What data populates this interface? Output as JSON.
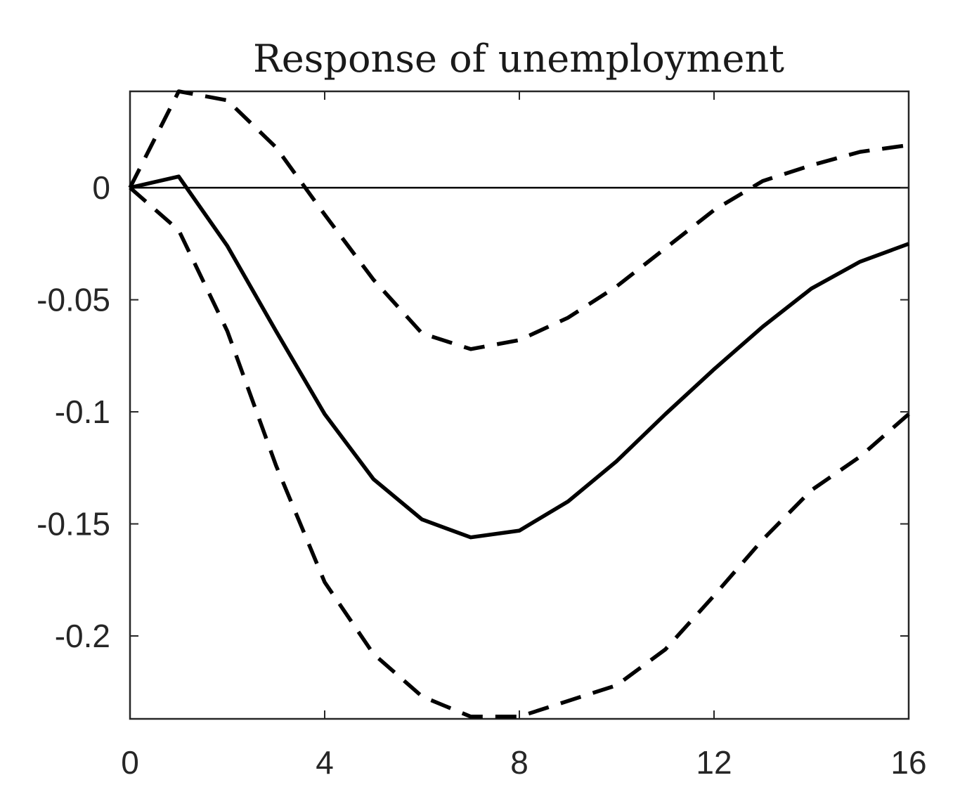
{
  "chart_data": {
    "type": "line",
    "title": "Response of unemployment",
    "xlabel": "",
    "ylabel": "",
    "xlim": [
      0,
      16
    ],
    "ylim": [
      -0.237,
      0.043
    ],
    "xticks": [
      0,
      4,
      8,
      12,
      16
    ],
    "xtick_labels": [
      "0",
      "4",
      "8",
      "12",
      "16"
    ],
    "yticks": [
      0,
      -0.05,
      -0.1,
      -0.15,
      -0.2
    ],
    "ytick_labels": [
      "0",
      "-0.05",
      "-0.1",
      "-0.15",
      "-0.2"
    ],
    "grid": false,
    "zero_line": true,
    "legend": "none",
    "series": [
      {
        "style": "solid",
        "color": "#000000",
        "x": [
          0,
          1,
          2,
          3,
          4,
          5,
          6,
          7,
          8,
          9,
          10,
          11,
          12,
          13,
          14,
          15,
          16
        ],
        "y": [
          0,
          0.005,
          -0.026,
          -0.064,
          -0.101,
          -0.13,
          -0.148,
          -0.156,
          -0.153,
          -0.14,
          -0.122,
          -0.101,
          -0.081,
          -0.062,
          -0.045,
          -0.033,
          -0.025
        ]
      },
      {
        "style": "dashed",
        "color": "#000000",
        "x": [
          0,
          1,
          2,
          3,
          4,
          5,
          6,
          7,
          8,
          9,
          10,
          11,
          12,
          13,
          14,
          15,
          16
        ],
        "y": [
          0,
          0.043,
          0.039,
          0.018,
          -0.012,
          -0.041,
          -0.065,
          -0.072,
          -0.068,
          -0.058,
          -0.044,
          -0.027,
          -0.01,
          0.003,
          0.01,
          0.016,
          0.019
        ]
      },
      {
        "style": "dashed",
        "color": "#000000",
        "x": [
          0,
          1,
          2,
          3,
          4,
          5,
          6,
          7,
          8,
          9,
          10,
          11,
          12,
          13,
          14,
          15,
          16
        ],
        "y": [
          0,
          -0.019,
          -0.064,
          -0.124,
          -0.176,
          -0.208,
          -0.227,
          -0.236,
          -0.236,
          -0.229,
          -0.222,
          -0.206,
          -0.182,
          -0.157,
          -0.135,
          -0.12,
          -0.101
        ]
      }
    ]
  }
}
